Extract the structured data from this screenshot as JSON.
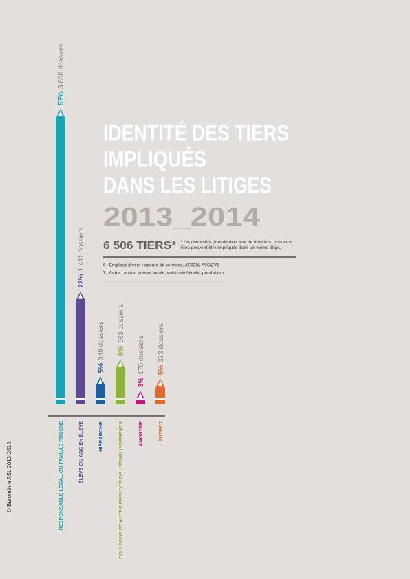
{
  "chart_data": {
    "type": "pencil-bar",
    "title_lines": [
      "IDENTITÉ DES TIERS",
      "IMPLIQUÉS",
      "DANS LES LITIGES"
    ],
    "subtitle": "2013_2014",
    "total_label": "6 506 TIERS*",
    "total_note": "* On dénombre plus de tiers que de dossiers, plusieurs tiers peuvent être impliqués dans un même litige.",
    "footnotes": [
      "6_ Employé divers : agents de services, ATSEM, AVS/EVS",
      "7_ Autre : maire, presse locale, voisin de l'école, prestataire."
    ],
    "credit": "© Baromètre ASL 2013-2014",
    "categories": [
      "RESPONSABLE LÉGAL OU FAMILLE PROCHE",
      "ÉLÈVE OU ANCIEN ÉLÈVE",
      "HIÉRARCHIE",
      "COLLÈGUE ET AUTRE EMPLOYÉ DE L'ÉTABLISSEMENT 6",
      "ANONYME",
      "AUTRE 7"
    ],
    "values": [
      3690,
      1411,
      349,
      563,
      170,
      323
    ],
    "value_labels": [
      "3 690 dossiers",
      "1 411 dossiers",
      "349 dossiers",
      "563 dossiers",
      "170 dossiers",
      "323 dossiers"
    ],
    "percentages": [
      57,
      22,
      5,
      9,
      3,
      5
    ],
    "percentage_labels": [
      "57%",
      "22%",
      "5%",
      "9%",
      "3%",
      "5%"
    ],
    "colors": [
      "#1aa3b5",
      "#5e4a8f",
      "#1d5fa0",
      "#8db33f",
      "#c0137a",
      "#e06a2e"
    ]
  }
}
